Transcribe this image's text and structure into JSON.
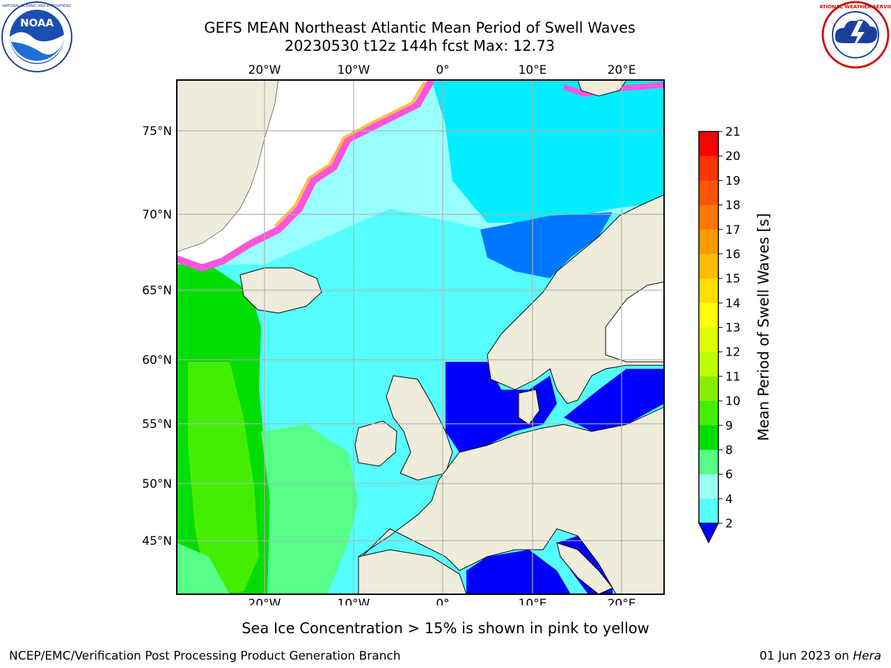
{
  "header": {
    "title_line1": "GEFS MEAN Northeast Atlantic Mean Period of Swell Waves",
    "title_line2": "20230530 t12z 144h fcst   Max: 12.73"
  },
  "logos": {
    "left": "noaa-logo",
    "right": "nws-logo"
  },
  "map": {
    "region": "Northeast Atlantic",
    "lon_ticks": [
      "20°W",
      "10°W",
      "0°",
      "10°E",
      "20°E"
    ],
    "lat_ticks": [
      "75°N",
      "70°N",
      "65°N",
      "60°N",
      "55°N",
      "50°N",
      "45°N"
    ],
    "colors": {
      "land": "#efecdc",
      "coast": "#000000",
      "grid": "#b0b0b0",
      "no_data": "#ffffff"
    }
  },
  "colorbar": {
    "label": "Mean Period of Swell Waves [s]",
    "ticks": [
      "21",
      "20",
      "19",
      "18",
      "17",
      "16",
      "15",
      "14",
      "13",
      "12",
      "11",
      "10",
      "9",
      "8",
      "6",
      "4",
      "2"
    ],
    "colors_top_to_bottom": [
      "#ff0000",
      "#ff3300",
      "#ff5500",
      "#ff7700",
      "#ff9900",
      "#ffbb00",
      "#ffdd00",
      "#ffff00",
      "#ddff00",
      "#bbff00",
      "#88ee00",
      "#44ee00",
      "#00dd00",
      "#55ff88",
      "#99ffee",
      "#55ffff",
      "#00eeff",
      "#0077ff",
      "#0000ff"
    ],
    "extend": "min"
  },
  "notes": {
    "ice": "Sea Ice Concentration > 15% is shown in pink to yellow"
  },
  "footer": {
    "left": "NCEP/EMC/Verification Post Processing Product Generation Branch",
    "right_date": "01 Jun 2023 on",
    "right_host": "Hera"
  }
}
